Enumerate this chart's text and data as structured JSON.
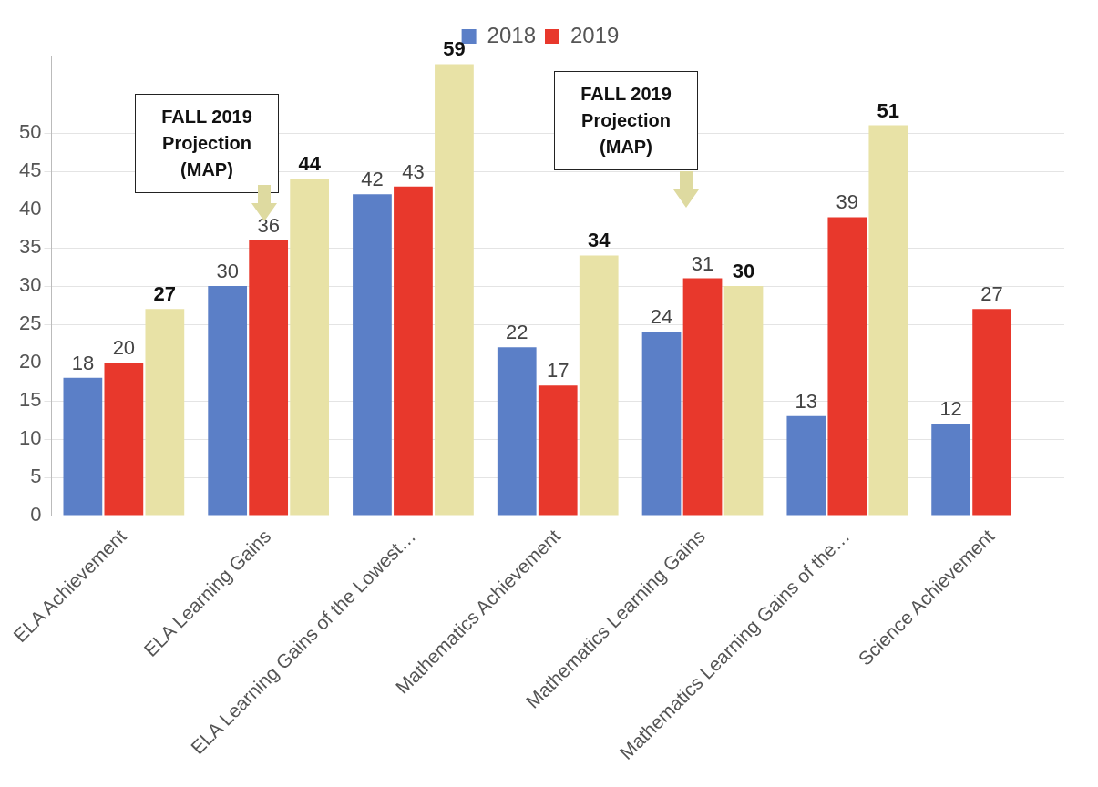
{
  "chart_data": {
    "type": "bar",
    "categories": [
      "ELA Achievement",
      "ELA Learning Gains",
      "ELA Learning Gains of the Lowest…",
      "Mathematics Achievement",
      "Mathematics Learning Gains",
      "Mathematics Learning Gains of the…",
      "Science Achievement"
    ],
    "series": [
      {
        "name": "2018",
        "color": "#5b7fc7",
        "values": [
          18,
          30,
          42,
          22,
          24,
          13,
          12
        ]
      },
      {
        "name": "2019",
        "color": "#e8382c",
        "values": [
          20,
          36,
          43,
          17,
          31,
          39,
          27
        ]
      },
      {
        "color": "#e8e2a6",
        "values": [
          27,
          44,
          59,
          34,
          30,
          51,
          null
        ]
      }
    ],
    "ylim": [
      0,
      60
    ],
    "yticks": [
      0,
      5,
      10,
      15,
      20,
      25,
      30,
      35,
      40,
      45,
      50
    ],
    "grid": "y",
    "legend": "top",
    "data_labels": true,
    "annotations": [
      "FALL 2019\nProjection\n(MAP)",
      "FALL 2019\nProjection\n(MAP)"
    ]
  }
}
